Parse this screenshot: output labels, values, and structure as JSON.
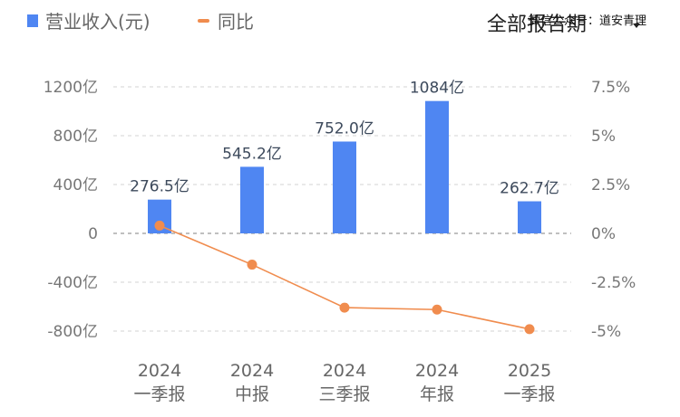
{
  "legend": {
    "revenue_label": "营业收入(元)",
    "yoy_label": "同比"
  },
  "period_selector": {
    "label": "全部报告期",
    "watermark": "微信公众号：道安青理"
  },
  "colors": {
    "bar": "#4f86f2",
    "line": "#f08c4e",
    "grid": "#dcdcdc",
    "zero_line": "#9a9a9a"
  },
  "chart_data": {
    "type": "bar",
    "categories": [
      [
        "2024",
        "一季报"
      ],
      [
        "2024",
        "中报"
      ],
      [
        "2024",
        "三季报"
      ],
      [
        "2024",
        "年报"
      ],
      [
        "2025",
        "一季报"
      ]
    ],
    "series": [
      {
        "name": "营业收入(元)",
        "type": "bar",
        "axis": "left",
        "values": [
          276.5,
          545.2,
          752.0,
          1084,
          262.7
        ],
        "labels": [
          "276.5亿",
          "545.2亿",
          "752.0亿",
          "1084亿",
          "262.7亿"
        ]
      },
      {
        "name": "同比",
        "type": "line",
        "axis": "right",
        "values": [
          0.4,
          -1.6,
          -3.8,
          -3.9,
          -4.9
        ]
      }
    ],
    "y_left": {
      "ticks": [
        1200,
        800,
        400,
        0,
        -400,
        -800
      ],
      "tick_labels": [
        "1200亿",
        "800亿",
        "400亿",
        "0",
        "-400亿",
        "-800亿"
      ],
      "range": [
        -800,
        1200
      ]
    },
    "y_right": {
      "ticks": [
        7.5,
        5,
        2.5,
        0,
        -2.5,
        -5
      ],
      "tick_labels": [
        "7.5%",
        "5%",
        "2.5%",
        "0%",
        "-2.5%",
        "-5%"
      ],
      "range": [
        -5,
        7.5
      ]
    },
    "grid": true,
    "legend_position": "top-left"
  }
}
